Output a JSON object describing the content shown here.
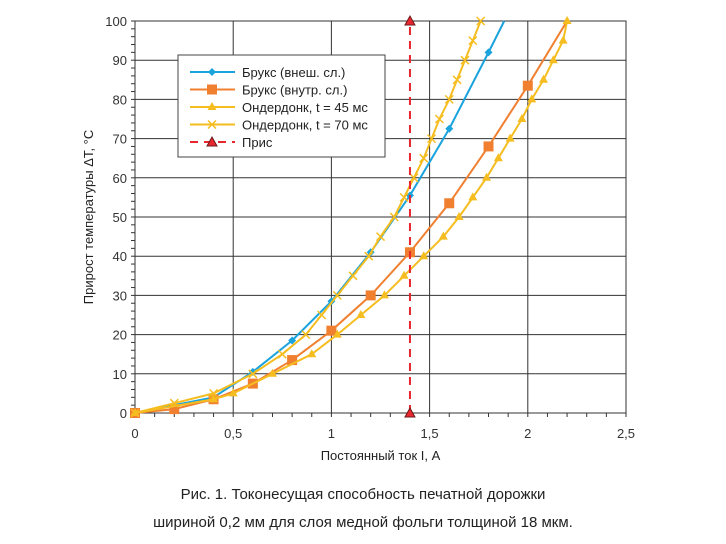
{
  "chart_data": {
    "type": "line",
    "xlabel": "Постоянный ток I, А",
    "ylabel": "Прирост температуры ΔT, °C",
    "xlim": [
      0,
      2.5
    ],
    "ylim": [
      0,
      100
    ],
    "xticks": [
      "0",
      "0,5",
      "1",
      "1,5",
      "2",
      "2,5"
    ],
    "yticks": [
      "0",
      "10",
      "20",
      "30",
      "40",
      "50",
      "60",
      "70",
      "80",
      "90",
      "100"
    ],
    "grid": true,
    "legend_position": "top-left",
    "series": [
      {
        "name": "Брукс (внеш. сл.)",
        "color": "#1aa3dc",
        "marker": "diamond",
        "dash": false,
        "x": [
          0,
          0.4,
          0.6,
          0.8,
          1.0,
          1.2,
          1.4,
          1.6,
          1.8,
          1.88
        ],
        "y": [
          0,
          4,
          10.5,
          18.5,
          28.5,
          41,
          55.5,
          72.5,
          92,
          100
        ],
        "markers_on": [
          1,
          1,
          1,
          1,
          1,
          1,
          1,
          1,
          1,
          0
        ]
      },
      {
        "name": "Брукс (внутр. сл.)",
        "color": "#f08030",
        "marker": "square",
        "dash": false,
        "x": [
          0,
          0.2,
          0.4,
          0.6,
          0.8,
          1.0,
          1.2,
          1.4,
          1.6,
          1.8,
          2.0,
          2.2
        ],
        "y": [
          0,
          1,
          3.5,
          7.5,
          13.5,
          21,
          30,
          41,
          53.5,
          68,
          83.5,
          100
        ],
        "markers_on": [
          1,
          1,
          1,
          1,
          1,
          1,
          1,
          1,
          1,
          1,
          1,
          0
        ]
      },
      {
        "name": "Ондердонк, t = 45 мс",
        "color": "#f5bd1f",
        "marker": "triangle",
        "dash": false,
        "x": [
          0,
          0.4,
          0.5,
          0.7,
          0.9,
          1.03,
          1.15,
          1.27,
          1.37,
          1.47,
          1.57,
          1.65,
          1.72,
          1.79,
          1.85,
          1.91,
          1.97,
          2.02,
          2.08,
          2.13,
          2.18,
          2.2
        ],
        "y": [
          0,
          3.5,
          5,
          10,
          15,
          20,
          25,
          30,
          35,
          40,
          45,
          50,
          55,
          60,
          65,
          70,
          75,
          80,
          85,
          90,
          95,
          100
        ]
      },
      {
        "name": "Ондердонк, t = 70 мс",
        "color": "#f5bd1f",
        "marker": "x",
        "dash": false,
        "x": [
          0,
          0.2,
          0.4,
          0.6,
          0.75,
          0.87,
          0.95,
          1.03,
          1.11,
          1.19,
          1.25,
          1.32,
          1.37,
          1.42,
          1.47,
          1.51,
          1.55,
          1.6,
          1.64,
          1.68,
          1.72,
          1.76
        ],
        "y": [
          0,
          2.5,
          5,
          10,
          15,
          20,
          25,
          30,
          35,
          40,
          45,
          50,
          55,
          60,
          65,
          70,
          75,
          80,
          85,
          90,
          95,
          100
        ]
      },
      {
        "name": "Прис",
        "color": "#e8262d",
        "marker": "triangle-dark",
        "dash": true,
        "x": [
          1.4,
          1.4
        ],
        "y": [
          0,
          100
        ]
      }
    ]
  },
  "caption": {
    "line1": "Рис. 1. Токонесущая способность печатной дорожки",
    "line2": "шириной 0,2 мм для слоя медной фольги толщиной 18 мкм."
  }
}
